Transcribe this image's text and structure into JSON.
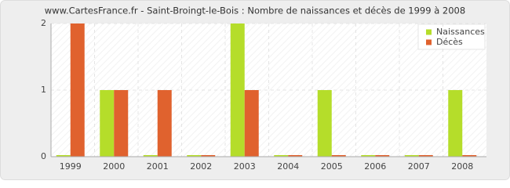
{
  "chart_data": {
    "type": "bar",
    "title": "www.CartesFrance.fr - Saint-Broingt-le-Bois : Nombre de naissances et décès de 1999 à 2008",
    "categories": [
      "1999",
      "2000",
      "2001",
      "2002",
      "2003",
      "2004",
      "2005",
      "2006",
      "2007",
      "2008"
    ],
    "series": [
      {
        "name": "Naissances",
        "color": "#b5dd2a",
        "values": [
          0,
          1,
          0,
          0,
          2,
          0,
          1,
          0,
          0,
          1
        ]
      },
      {
        "name": "Décès",
        "color": "#e0622e",
        "values": [
          2,
          1,
          1,
          0,
          1,
          0,
          0,
          0,
          0,
          0
        ]
      }
    ],
    "ylim": [
      0,
      2
    ],
    "yticks": [
      0,
      1,
      2
    ],
    "grid": true
  }
}
